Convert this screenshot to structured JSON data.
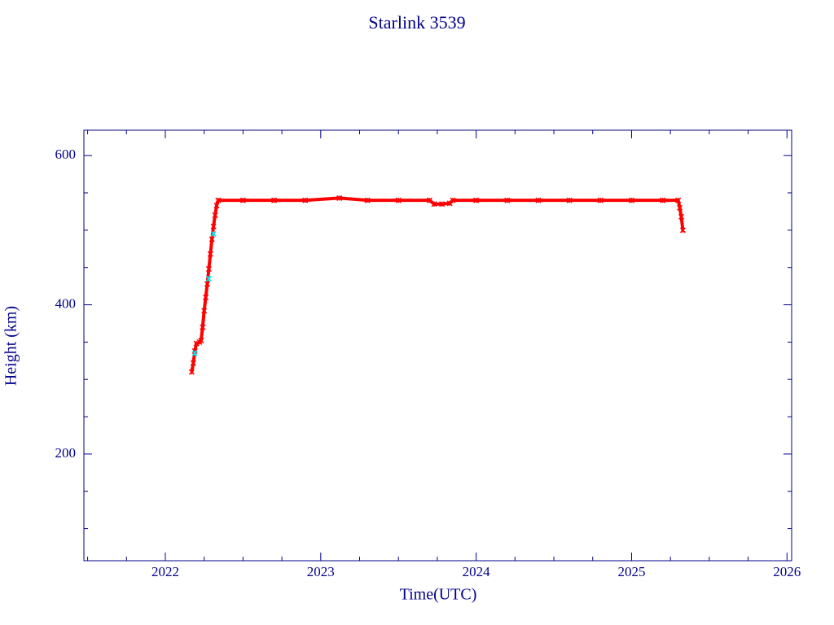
{
  "chart_data": {
    "type": "scatter",
    "title": "Starlink 3539",
    "x_label": "Time(UTC)",
    "y_label": "Height (km)",
    "xlim": [
      2021.476,
      2026.03
    ],
    "ylim": [
      57,
      634
    ],
    "xticks": [
      2022,
      2023,
      2024,
      2025,
      2026
    ],
    "xminorticks": [
      2021.5,
      2021.75,
      2022.25,
      2022.5,
      2022.75,
      2023.25,
      2023.5,
      2023.75,
      2024.25,
      2024.5,
      2024.75,
      2025.25,
      2025.5,
      2025.75
    ],
    "yticks": [
      200,
      400,
      600
    ],
    "yminorticks": [
      100,
      150,
      250,
      300,
      350,
      450,
      500,
      550
    ],
    "series": [
      {
        "color": "#ff0000",
        "connected": true,
        "x": [
          2022.17,
          2022.18,
          2022.19,
          2022.2,
          2022.22,
          2022.23,
          2022.24,
          2022.25,
          2022.26,
          2022.27,
          2022.28,
          2022.29,
          2022.3,
          2022.31,
          2022.32,
          2022.33,
          2022.34,
          2022.5,
          2022.7,
          2022.9,
          2023.12,
          2023.3,
          2023.5,
          2023.7,
          2023.73,
          2023.78,
          2023.83,
          2023.85,
          2024.0,
          2024.2,
          2024.4,
          2024.6,
          2024.8,
          2025.0,
          2025.2,
          2025.3,
          2025.31,
          2025.32,
          2025.33
        ],
        "values": [
          310,
          322,
          338,
          348,
          350,
          352,
          370,
          392,
          410,
          428,
          448,
          468,
          488,
          505,
          520,
          533,
          540,
          540,
          540,
          540,
          543,
          540,
          540,
          540,
          535,
          535,
          536,
          540,
          540,
          540,
          540,
          540,
          540,
          540,
          540,
          540,
          530,
          518,
          500
        ]
      },
      {
        "color": "#00e5ee",
        "connected": false,
        "x": [
          2022.19,
          2022.28,
          2022.31
        ],
        "values": [
          335,
          435,
          495
        ]
      }
    ]
  }
}
